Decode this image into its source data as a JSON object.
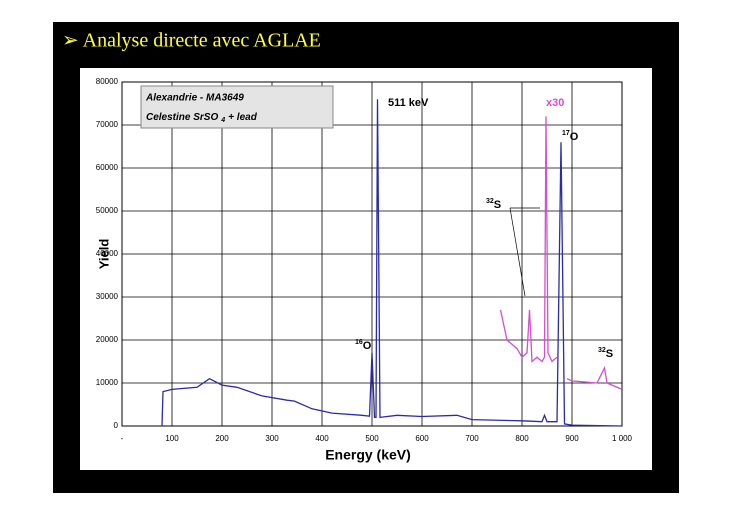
{
  "slide_title": "➢ Analyse directe avec AGLAE",
  "chart_data": {
    "type": "line",
    "xlabel": "Energy (keV)",
    "ylabel": "Yield",
    "xlim": [
      0,
      1000
    ],
    "ylim": [
      0,
      80000
    ],
    "xticks": [
      {
        "value": 0,
        "label": "-"
      },
      100,
      200,
      300,
      400,
      500,
      600,
      700,
      800,
      900,
      {
        "value": 1000,
        "label": "1 000"
      }
    ],
    "yticks": [
      0,
      10000,
      20000,
      30000,
      40000,
      50000,
      60000,
      70000,
      80000
    ],
    "grid": true,
    "info_box": {
      "line1": "Alexandrie - MA3649",
      "line2": "Celestine SrSO",
      "line2_sub": "4",
      "line2_end": "+ lead"
    },
    "annotations": [
      {
        "text": "511 keV"
      },
      {
        "text": "x30"
      },
      {
        "sup": "17",
        "base": "O"
      },
      {
        "sup": "16",
        "base": "O"
      },
      {
        "sup": "32",
        "base": "S"
      },
      {
        "sup": "32",
        "base": "S"
      }
    ],
    "series": [
      {
        "color": "#2b2ba8",
        "x": [
          80,
          82,
          100,
          150,
          175,
          200,
          230,
          280,
          330,
          345,
          380,
          420,
          480,
          495,
          500,
          505,
          508,
          511,
          516,
          550,
          600,
          670,
          700,
          800,
          840,
          845,
          850,
          870,
          878,
          885,
          900,
          1000
        ],
        "values": [
          0,
          8000,
          8500,
          9000,
          11000,
          9500,
          9000,
          7000,
          6000,
          5800,
          4000,
          3000,
          2500,
          2300,
          17000,
          2000,
          2000,
          76000,
          2000,
          2500,
          2200,
          2500,
          1500,
          1200,
          1000,
          2500,
          1000,
          1000,
          66000,
          500,
          200,
          0
        ]
      },
      {
        "color": "#d24fd2",
        "x": [
          757,
          770,
          790,
          800,
          810,
          815,
          820,
          830,
          840,
          845,
          848,
          852,
          860,
          870,
          880,
          890,
          900,
          950,
          965,
          970,
          1000
        ],
        "values": [
          27000,
          20000,
          18000,
          16000,
          17000,
          27000,
          15000,
          16000,
          15000,
          16000,
          72000,
          17000,
          15000,
          16000,
          null,
          11000,
          10500,
          10000,
          13500,
          10000,
          8500
        ]
      }
    ]
  }
}
